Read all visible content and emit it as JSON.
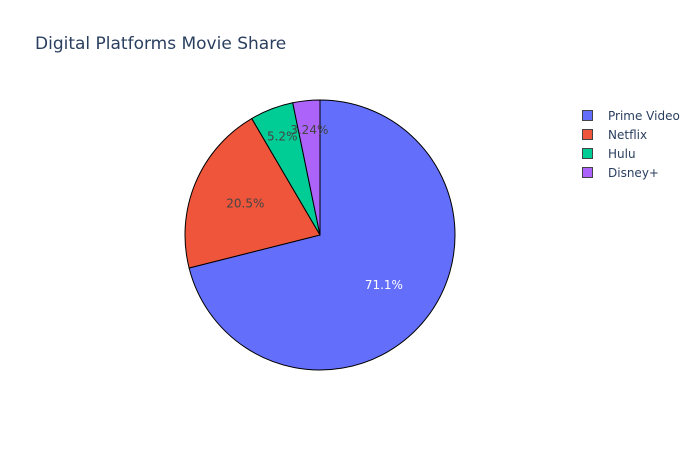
{
  "chart_data": {
    "type": "pie",
    "title": "Digital Platforms Movie Share",
    "categories": [
      "Prime Video",
      "Netflix",
      "Hulu",
      "Disney+"
    ],
    "values": [
      71.1,
      20.5,
      5.2,
      3.24
    ],
    "labels": [
      "71.1%",
      "20.5%",
      "5.2%",
      "3.24%"
    ],
    "colors": [
      "#636efa",
      "#ef553b",
      "#00cc96",
      "#ab63fa"
    ],
    "label_colors": [
      "#ffffff",
      "#444444",
      "#444444",
      "#444444"
    ],
    "legend_position": "top-right",
    "direction": "clockwise",
    "start": "top"
  }
}
